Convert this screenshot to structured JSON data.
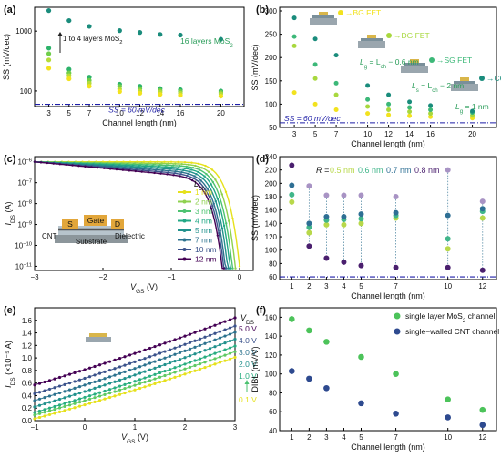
{
  "chart_data": [
    {
      "panel": "(a)",
      "type": "scatter",
      "xlabel": "Channel length (nm)",
      "ylabel": "SS (mV/dec)",
      "ylog": true,
      "ylim": [
        55,
        2500
      ],
      "x_ticks": [
        3,
        5,
        7,
        10,
        12,
        14,
        16,
        20
      ],
      "y_ticks": [
        {
          "v": 100,
          "label": "100"
        },
        {
          "v": 1000,
          "label": "1000"
        }
      ],
      "series": [
        {
          "color": "#1a8c7c",
          "x": [
            3,
            5,
            7,
            10,
            12,
            14,
            16,
            20
          ],
          "y": [
            2200,
            1500,
            1200,
            1020,
            950,
            880,
            860,
            730
          ]
        },
        {
          "color": "#2db36a",
          "x": [
            3,
            5,
            7,
            10,
            12,
            14,
            16,
            20
          ],
          "y": [
            520,
            230,
            170,
            130,
            120,
            110,
            105,
            100
          ]
        },
        {
          "color": "#6fce4b",
          "x": [
            3,
            5,
            7,
            10,
            12,
            14,
            16,
            20
          ],
          "y": [
            420,
            200,
            150,
            120,
            110,
            102,
            98,
            95
          ]
        },
        {
          "color": "#b5dc3a",
          "x": [
            3,
            5,
            7,
            10,
            12,
            14,
            16,
            20
          ],
          "y": [
            330,
            180,
            135,
            108,
            100,
            96,
            92,
            90
          ]
        },
        {
          "color": "#f2e21e",
          "x": [
            3,
            5,
            7,
            10,
            12,
            14,
            16,
            20
          ],
          "y": [
            240,
            160,
            120,
            98,
            92,
            88,
            85,
            82
          ]
        }
      ],
      "reference_line": {
        "y": 60,
        "label": "SS = 60 mV/dec"
      },
      "annotations": {
        "layers_left": "1 to 4 layers MoS",
        "layers_left_sub": "2",
        "layers_right": "16 layers MoS",
        "layers_right_sub": "2"
      }
    },
    {
      "panel": "(b)",
      "type": "scatter",
      "xlabel": "Channel length (nm)",
      "ylabel": "SS (mV/dec)",
      "ylim": [
        50,
        300
      ],
      "x_ticks": [
        3,
        5,
        7,
        10,
        12,
        14,
        16,
        20
      ],
      "y_ticks": [
        50,
        100,
        150,
        200,
        250,
        300
      ],
      "series": [
        {
          "name": "BG FET",
          "color": "#f2e21e",
          "x": [
            3,
            5,
            7,
            10,
            12,
            14,
            16,
            20
          ],
          "y": [
            125,
            100,
            88,
            80,
            77,
            75,
            73,
            70
          ]
        },
        {
          "name": "DG FET",
          "color": "#a8d83e",
          "x": [
            3,
            5,
            7,
            10,
            12,
            14,
            16,
            20
          ],
          "y": [
            225,
            155,
            120,
            95,
            88,
            84,
            80,
            76
          ]
        },
        {
          "name": "SG FET",
          "color": "#3cb878",
          "x": [
            3,
            5,
            7,
            10,
            12,
            14,
            16,
            20
          ],
          "y": [
            245,
            185,
            145,
            110,
            100,
            93,
            88,
            82
          ]
        },
        {
          "name": "CG FET",
          "color": "#1a8c7c",
          "x": [
            3,
            5,
            7,
            10,
            12,
            14,
            16,
            20
          ],
          "y": [
            285,
            240,
            205,
            140,
            120,
            105,
            97,
            85
          ]
        }
      ],
      "reference_line": {
        "y": 60,
        "label": "SS = 60 mV/dec"
      },
      "annotations": [
        {
          "main": "L",
          "sub": "g",
          "rest": " = L",
          "sub2": "ch",
          "tail": " − 0.6 nm"
        },
        {
          "main": "L",
          "sub": "s",
          "rest": " = L",
          "sub2": "ch",
          "tail": " − 2 nm"
        },
        {
          "main": "L",
          "sub": "g",
          "rest": " = 1 nm",
          "sub2": "",
          "tail": ""
        }
      ]
    },
    {
      "panel": "(c)",
      "type": "line",
      "xlabel_main": "V",
      "xlabel_sub": "GS",
      "xlabel_unit": " (V)",
      "ylabel_main": "I",
      "ylabel_sub": "DS",
      "ylabel_unit": " (A)",
      "ylog": true,
      "xlim": [
        -3,
        0.2
      ],
      "x_ticks": [
        -3,
        -2,
        -1,
        0
      ],
      "y_ticks_exp": [
        -11,
        -10,
        -9,
        -8,
        -7,
        -6
      ],
      "legend_title_main": "L",
      "legend_title_sub": "ch",
      "series": [
        {
          "name": "1 nm",
          "color": "#e6e11b",
          "cut": 0.0
        },
        {
          "name": "2 nm",
          "color": "#8fd14f",
          "cut": -0.06
        },
        {
          "name": "3 nm",
          "color": "#4cc270",
          "cut": -0.1
        },
        {
          "name": "4 nm",
          "color": "#22a885",
          "cut": -0.13
        },
        {
          "name": "5 nm",
          "color": "#21918c",
          "cut": -0.16
        },
        {
          "name": "7 nm",
          "color": "#2c728e",
          "cut": -0.19
        },
        {
          "name": "10 nm",
          "color": "#3b528b",
          "cut": -0.21
        },
        {
          "name": "12 nm",
          "color": "#440154",
          "cut": -0.23
        }
      ],
      "inset_labels": {
        "source": "S",
        "gate": "Gate",
        "drain": "D",
        "cnt": "CNT",
        "dielectric": "Dielectric",
        "substrate": "Substrate"
      }
    },
    {
      "panel": "(d)",
      "type": "scatter",
      "xlabel": "Channel length (nm)",
      "ylabel": "SS (mV/dec)",
      "ylim": [
        60,
        240
      ],
      "x_ticks": [
        1,
        2,
        3,
        4,
        5,
        7,
        10,
        12
      ],
      "y_ticks": [
        60,
        80,
        100,
        120,
        140,
        160,
        180,
        200,
        220,
        240
      ],
      "legend_title": "R =",
      "series": [
        {
          "name": "0.5 nm",
          "color": "#b8d84a",
          "x": [
            1,
            2,
            3,
            4,
            5,
            7,
            10,
            12
          ],
          "y": [
            172,
            126,
            138,
            138,
            140,
            148,
            102,
            148
          ]
        },
        {
          "name": "0.6 nm",
          "color": "#40b68a",
          "x": [
            1,
            2,
            3,
            4,
            5,
            7,
            10,
            12
          ],
          "y": [
            183,
            134,
            145,
            146,
            147,
            152,
            117,
            158
          ]
        },
        {
          "name": "0.7 nm",
          "color": "#2e6f94",
          "x": [
            1,
            2,
            3,
            4,
            5,
            7,
            10,
            12
          ],
          "y": [
            197,
            140,
            150,
            150,
            154,
            156,
            152,
            162
          ]
        },
        {
          "name": "0.8 nm",
          "color": "#4a1f6e",
          "x": [
            1,
            2,
            3,
            4,
            5,
            7,
            10,
            12
          ],
          "y": [
            227,
            106,
            88,
            82,
            77,
            74,
            74,
            70
          ]
        }
      ],
      "lavender_points": {
        "color": "#a893c4",
        "x": [
          2,
          3,
          4,
          5,
          7,
          10,
          12
        ],
        "y": [
          196,
          182,
          182,
          182,
          180,
          220,
          173
        ]
      },
      "reference_line": {
        "y": 60
      }
    },
    {
      "panel": "(e)",
      "type": "line",
      "xlabel_main": "V",
      "xlabel_sub": "GS",
      "xlabel_unit": " (V)",
      "ylabel_main": "I",
      "ylabel_sub": "DS",
      "ylabel_unit": " (×10⁻⁵ A)",
      "xlim": [
        -1,
        3
      ],
      "ylim": [
        0,
        1.8
      ],
      "x_ticks": [
        -1,
        0,
        1,
        2,
        3
      ],
      "y_ticks": [
        0.0,
        0.2,
        0.4,
        0.6,
        0.8,
        1.0,
        1.2,
        1.4,
        1.6
      ],
      "legend_title_main": "V",
      "legend_title_sub": "DS",
      "series": [
        {
          "name": "5.0 V",
          "color": "#440154",
          "y_start": 0.57,
          "y_end": 1.64
        },
        {
          "name": "4.0 V",
          "color": "#3b528b",
          "y_start": 0.43,
          "y_end": 1.51
        },
        {
          "name": "3.0 V",
          "color": "#2c728e",
          "y_start": 0.32,
          "y_end": 1.41
        },
        {
          "name": "2.0 V",
          "color": "#21918c",
          "y_start": 0.22,
          "y_end": 1.3
        },
        {
          "name": "1.0 V",
          "color": "#28ae80",
          "y_start": 0.13,
          "y_end": 1.19
        },
        {
          "name": "",
          "color": "#5ec962",
          "y_start": 0.09,
          "y_end": 1.1
        },
        {
          "name": "0.1 V",
          "color": "#e6e11b",
          "y_start": 0.03,
          "y_end": 1.01
        }
      ]
    },
    {
      "panel": "(f)",
      "type": "scatter",
      "xlabel": "Channel length (nm)",
      "ylabel": "DIBL (mV/V)",
      "ylim": [
        40,
        170
      ],
      "x_ticks": [
        1,
        2,
        3,
        4,
        5,
        7,
        10,
        12
      ],
      "y_ticks": [
        40,
        60,
        80,
        100,
        120,
        140,
        160
      ],
      "series": [
        {
          "name": "single layer MoS",
          "sub": "2",
          "tail": " channel",
          "color": "#4cc35a",
          "x": [
            1,
            2,
            3,
            5,
            7,
            10,
            12
          ],
          "y": [
            158,
            146,
            134,
            118,
            100,
            73,
            62
          ]
        },
        {
          "name": "single−walled CNT channel",
          "sub": "",
          "tail": "",
          "color": "#2e4a8f",
          "x": [
            1,
            2,
            3,
            5,
            7,
            10,
            12
          ],
          "y": [
            103,
            95,
            85,
            69,
            58,
            54,
            46
          ]
        }
      ]
    }
  ]
}
